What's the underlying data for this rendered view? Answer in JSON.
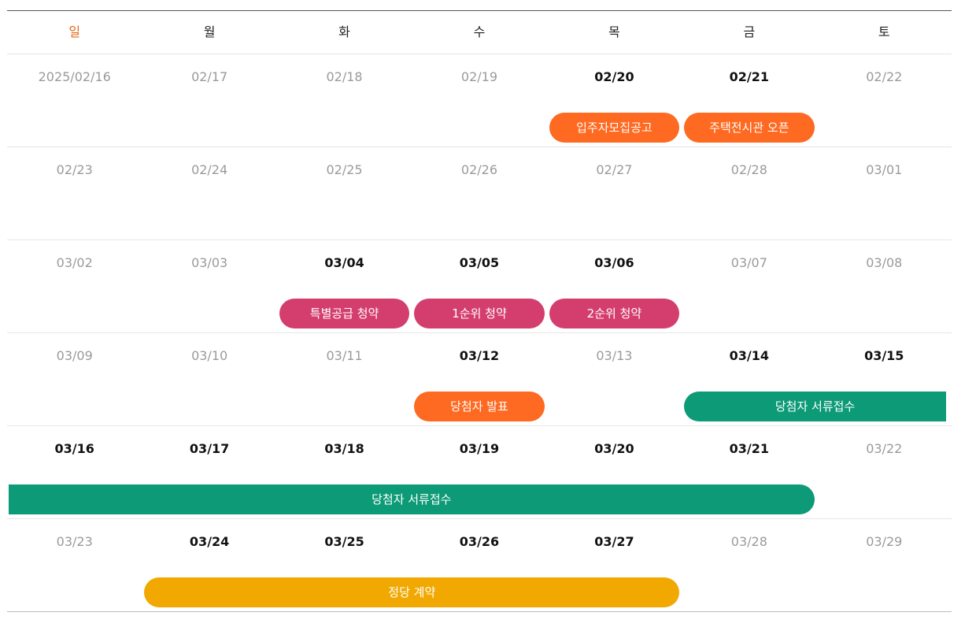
{
  "colors": {
    "orange": "#fe6a21",
    "pink": "#d43e6e",
    "green": "#0d9a77",
    "yellow": "#f1a902",
    "sunday_header": "#e26a1c"
  },
  "weekdays": [
    "일",
    "월",
    "화",
    "수",
    "목",
    "금",
    "토"
  ],
  "weeks": [
    {
      "days": [
        {
          "label": "2025/02/16",
          "active": false
        },
        {
          "label": "02/17",
          "active": false
        },
        {
          "label": "02/18",
          "active": false
        },
        {
          "label": "02/19",
          "active": false
        },
        {
          "label": "02/20",
          "active": true
        },
        {
          "label": "02/21",
          "active": true
        },
        {
          "label": "02/22",
          "active": false
        }
      ],
      "events": [
        {
          "label": "입주자모집공고",
          "start": 4,
          "span": 1,
          "color": "orange"
        },
        {
          "label": "주택전시관 오픈",
          "start": 5,
          "span": 1,
          "color": "orange"
        }
      ]
    },
    {
      "days": [
        {
          "label": "02/23",
          "active": false
        },
        {
          "label": "02/24",
          "active": false
        },
        {
          "label": "02/25",
          "active": false
        },
        {
          "label": "02/26",
          "active": false
        },
        {
          "label": "02/27",
          "active": false
        },
        {
          "label": "02/28",
          "active": false
        },
        {
          "label": "03/01",
          "active": false
        }
      ],
      "events": []
    },
    {
      "days": [
        {
          "label": "03/02",
          "active": false
        },
        {
          "label": "03/03",
          "active": false
        },
        {
          "label": "03/04",
          "active": true
        },
        {
          "label": "03/05",
          "active": true
        },
        {
          "label": "03/06",
          "active": true
        },
        {
          "label": "03/07",
          "active": false
        },
        {
          "label": "03/08",
          "active": false
        }
      ],
      "events": [
        {
          "label": "특별공급 청약",
          "start": 2,
          "span": 1,
          "color": "pink"
        },
        {
          "label": "1순위 청약",
          "start": 3,
          "span": 1,
          "color": "pink"
        },
        {
          "label": "2순위 청약",
          "start": 4,
          "span": 1,
          "color": "pink"
        }
      ]
    },
    {
      "days": [
        {
          "label": "03/09",
          "active": false
        },
        {
          "label": "03/10",
          "active": false
        },
        {
          "label": "03/11",
          "active": false
        },
        {
          "label": "03/12",
          "active": true
        },
        {
          "label": "03/13",
          "active": false
        },
        {
          "label": "03/14",
          "active": true
        },
        {
          "label": "03/15",
          "active": true
        }
      ],
      "events": [
        {
          "label": "당첨자 발표",
          "start": 3,
          "span": 1,
          "color": "orange"
        },
        {
          "label": "당첨자 서류접수",
          "start": 5,
          "span": 2,
          "color": "green",
          "continues_right": true
        }
      ]
    },
    {
      "days": [
        {
          "label": "03/16",
          "active": true
        },
        {
          "label": "03/17",
          "active": true
        },
        {
          "label": "03/18",
          "active": true
        },
        {
          "label": "03/19",
          "active": true
        },
        {
          "label": "03/20",
          "active": true
        },
        {
          "label": "03/21",
          "active": true
        },
        {
          "label": "03/22",
          "active": false
        }
      ],
      "events": [
        {
          "label": "당첨자 서류접수",
          "start": 0,
          "span": 6,
          "color": "green",
          "continues_left": true
        }
      ]
    },
    {
      "days": [
        {
          "label": "03/23",
          "active": false
        },
        {
          "label": "03/24",
          "active": true
        },
        {
          "label": "03/25",
          "active": true
        },
        {
          "label": "03/26",
          "active": true
        },
        {
          "label": "03/27",
          "active": true
        },
        {
          "label": "03/28",
          "active": false
        },
        {
          "label": "03/29",
          "active": false
        }
      ],
      "events": [
        {
          "label": "정당 계약",
          "start": 1,
          "span": 4,
          "color": "yellow"
        }
      ]
    }
  ]
}
